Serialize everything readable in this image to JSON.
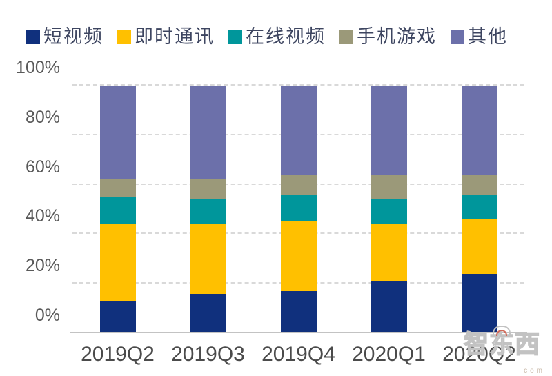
{
  "chart_data": {
    "type": "bar",
    "variant": "stacked-100-percent",
    "title": "",
    "xlabel": "",
    "ylabel": "",
    "categories": [
      "2019Q2",
      "2019Q3",
      "2019Q4",
      "2020Q1",
      "2020Q2"
    ],
    "series": [
      {
        "name": "短视频",
        "color": "#10307D",
        "values": [
          13,
          16,
          17,
          21,
          24
        ]
      },
      {
        "name": "即时通讯",
        "color": "#FFC000",
        "values": [
          31,
          28,
          28,
          23,
          22
        ]
      },
      {
        "name": "在线视频",
        "color": "#00969B",
        "values": [
          11,
          10,
          11,
          10,
          10
        ]
      },
      {
        "name": "手机游戏",
        "color": "#9B9979",
        "values": [
          7,
          8,
          8,
          10,
          8
        ]
      },
      {
        "name": "其他",
        "color": "#6C70AA",
        "values": [
          38,
          38,
          36,
          36,
          36
        ]
      }
    ],
    "ylim": [
      0,
      100
    ],
    "ytick_step": 20,
    "ytick_labels": [
      "0%",
      "20%",
      "40%",
      "60%",
      "80%",
      "100%"
    ],
    "grid": "horizontal-dashed",
    "legend_position": "top"
  },
  "watermark": {
    "text": "智东西",
    "com": "com"
  }
}
